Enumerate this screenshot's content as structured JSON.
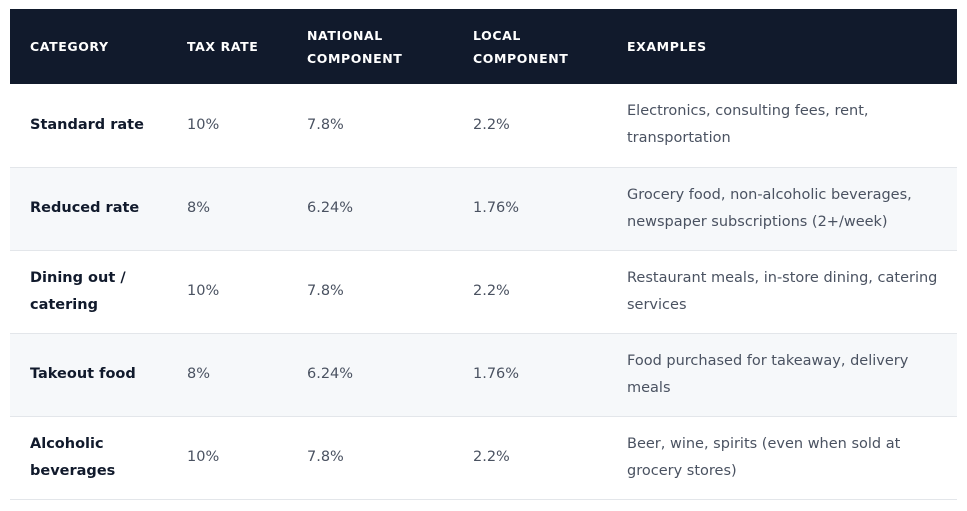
{
  "table": {
    "headers": {
      "category": "CATEGORY",
      "tax_rate": "TAX RATE",
      "national": "NATIONAL COMPONENT",
      "local": "LOCAL COMPONENT",
      "examples": "EXAMPLES"
    },
    "rows": [
      {
        "category": "Standard rate",
        "tax_rate": "10%",
        "national": "7.8%",
        "local": "2.2%",
        "examples": "Electronics, consulting fees, rent, transportation"
      },
      {
        "category": "Reduced rate",
        "tax_rate": "8%",
        "national": "6.24%",
        "local": "1.76%",
        "examples": "Grocery food, non-alcoholic beverages, newspaper subscriptions (2+/week)"
      },
      {
        "category": "Dining out / catering",
        "tax_rate": "10%",
        "national": "7.8%",
        "local": "2.2%",
        "examples": "Restaurant meals, in-store dining, catering services"
      },
      {
        "category": "Takeout food",
        "tax_rate": "8%",
        "national": "6.24%",
        "local": "1.76%",
        "examples": "Food purchased for takeaway, delivery meals"
      },
      {
        "category": "Alcoholic beverages",
        "tax_rate": "10%",
        "national": "7.8%",
        "local": "2.2%",
        "examples": "Beer, wine, spirits (even when sold at grocery stores)"
      }
    ]
  }
}
